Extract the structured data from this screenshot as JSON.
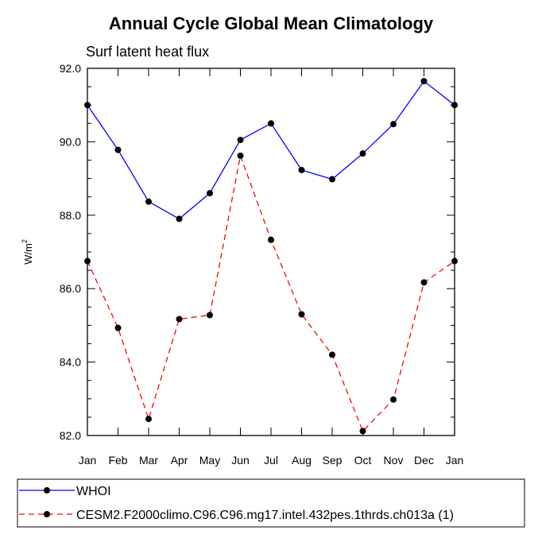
{
  "chart_data": {
    "type": "line",
    "title": "Annual Cycle Global Mean Climatology",
    "subtitle": "Surf latent heat flux",
    "ylabel": "W/m",
    "ylabel_sup": "2",
    "xlabel": "",
    "categories": [
      "Jan",
      "Feb",
      "Mar",
      "Apr",
      "May",
      "Jun",
      "Jul",
      "Aug",
      "Sep",
      "Oct",
      "Nov",
      "Dec",
      "Jan"
    ],
    "ylim": [
      82.0,
      92.0
    ],
    "yticks": [
      82.0,
      84.0,
      86.0,
      88.0,
      90.0,
      92.0
    ],
    "ytick_labels": [
      "82.0",
      "84.0",
      "86.0",
      "88.0",
      "90.0",
      "92.0"
    ],
    "series": [
      {
        "name": "WHOI",
        "color": "#0000ff",
        "dash": "solid",
        "values": [
          91.0,
          89.78,
          88.37,
          87.9,
          88.6,
          90.05,
          90.5,
          89.23,
          88.98,
          89.68,
          90.48,
          91.65,
          91.0
        ]
      },
      {
        "name": "CESM2.F2000climo.C96.C96.mg17.intel.432pes.1thrds.ch013a (1)",
        "color": "#ff0000",
        "dash": "dashed",
        "values": [
          86.75,
          84.93,
          82.45,
          85.17,
          85.28,
          89.62,
          87.33,
          85.3,
          84.2,
          82.12,
          82.98,
          86.17,
          86.75
        ]
      }
    ],
    "legend": "bottom"
  }
}
